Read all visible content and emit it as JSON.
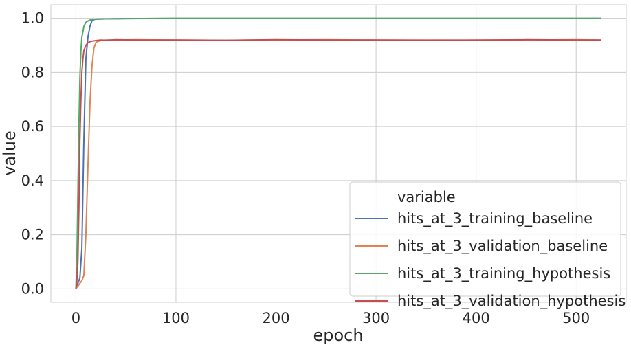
{
  "chart_data": {
    "type": "line",
    "title": "",
    "xlabel": "epoch",
    "ylabel": "value",
    "xlim": [
      -25,
      550
    ],
    "ylim": [
      -0.05,
      1.05
    ],
    "xticks": [
      0,
      100,
      200,
      300,
      400,
      500
    ],
    "yticks": [
      0.0,
      0.2,
      0.4,
      0.6,
      0.8,
      1.0
    ],
    "xtick_labels": [
      "0",
      "100",
      "200",
      "300",
      "400",
      "500"
    ],
    "ytick_labels": [
      "0.0",
      "0.2",
      "0.4",
      "0.6",
      "0.8",
      "1.0"
    ],
    "grid": true,
    "legend": {
      "title": "variable",
      "placement": "lower-right"
    },
    "series": [
      {
        "name": "hits_at_3_training_baseline",
        "color": "#4c72b0",
        "x": [
          0,
          2,
          4,
          6,
          8,
          10,
          12,
          14,
          16,
          18,
          20,
          30,
          50,
          100,
          200,
          300,
          400,
          500,
          525
        ],
        "y": [
          0.0,
          0.02,
          0.04,
          0.15,
          0.55,
          0.85,
          0.93,
          0.97,
          0.99,
          0.995,
          0.997,
          0.998,
          0.999,
          1.0,
          1.0,
          1.0,
          1.0,
          1.0,
          1.0
        ]
      },
      {
        "name": "hits_at_3_validation_baseline",
        "color": "#dd8452",
        "x": [
          0,
          2,
          4,
          6,
          8,
          10,
          12,
          14,
          16,
          18,
          20,
          22,
          25,
          30,
          40,
          60,
          100,
          150,
          200,
          250,
          300,
          350,
          400,
          450,
          500,
          525
        ],
        "y": [
          0.0,
          0.01,
          0.02,
          0.03,
          0.05,
          0.2,
          0.45,
          0.68,
          0.82,
          0.89,
          0.91,
          0.915,
          0.918,
          0.92,
          0.92,
          0.921,
          0.92,
          0.919,
          0.92,
          0.921,
          0.92,
          0.92,
          0.919,
          0.92,
          0.921,
          0.92
        ]
      },
      {
        "name": "hits_at_3_training_hypothesis",
        "color": "#55a868",
        "x": [
          0,
          1,
          2,
          3,
          4,
          5,
          6,
          8,
          10,
          12,
          15,
          20,
          30,
          50,
          100,
          200,
          300,
          400,
          500,
          525
        ],
        "y": [
          0.0,
          0.1,
          0.35,
          0.6,
          0.78,
          0.88,
          0.93,
          0.97,
          0.985,
          0.99,
          0.995,
          0.997,
          0.998,
          0.999,
          1.0,
          1.0,
          1.0,
          1.0,
          1.0,
          1.0
        ]
      },
      {
        "name": "hits_at_3_validation_hypothesis",
        "color": "#c44e52",
        "x": [
          0,
          1,
          2,
          3,
          4,
          5,
          6,
          7,
          8,
          10,
          12,
          15,
          20,
          25,
          30,
          40,
          60,
          100,
          150,
          200,
          250,
          300,
          350,
          400,
          450,
          500,
          525
        ],
        "y": [
          0.0,
          0.03,
          0.1,
          0.3,
          0.55,
          0.7,
          0.8,
          0.85,
          0.88,
          0.9,
          0.91,
          0.915,
          0.918,
          0.92,
          0.919,
          0.921,
          0.92,
          0.92,
          0.919,
          0.921,
          0.92,
          0.92,
          0.919,
          0.92,
          0.921,
          0.92,
          0.92
        ]
      }
    ]
  }
}
